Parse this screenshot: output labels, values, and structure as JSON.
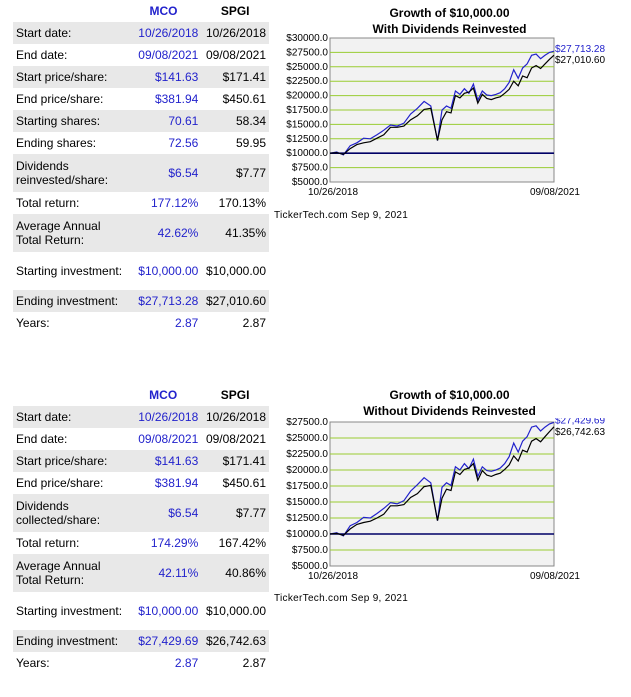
{
  "sections": [
    {
      "table": {
        "headers": [
          "",
          "MCO",
          "SPGI"
        ],
        "rows": [
          {
            "label": "Start date:",
            "mco": "10/26/2018",
            "spgi": "10/26/2018"
          },
          {
            "label": "End date:",
            "mco": "09/08/2021",
            "spgi": "09/08/2021"
          },
          {
            "label": "Start price/share:",
            "mco": "$141.63",
            "spgi": "$171.41"
          },
          {
            "label": "End price/share:",
            "mco": "$381.94",
            "spgi": "$450.61"
          },
          {
            "label": "Starting shares:",
            "mco": "70.61",
            "spgi": "58.34"
          },
          {
            "label": "Ending shares:",
            "mco": "72.56",
            "spgi": "59.95"
          },
          {
            "label": "Dividends reinvested/share:",
            "mco": "$6.54",
            "spgi": "$7.77"
          },
          {
            "label": "Total return:",
            "mco": "177.12%",
            "spgi": "170.13%"
          },
          {
            "label": "Average Annual Total Return:",
            "mco": "42.62%",
            "spgi": "41.35%"
          },
          {
            "label": "Starting investment:",
            "mco": "$10,000.00",
            "spgi": "$10,000.00"
          },
          {
            "label": "Ending investment:",
            "mco": "$27,713.28",
            "spgi": "$27,010.60"
          },
          {
            "label": "Years:",
            "mco": "2.87",
            "spgi": "2.87"
          }
        ]
      },
      "credit": "TickerTech.com  Sep 9, 2021"
    },
    {
      "table": {
        "headers": [
          "",
          "MCO",
          "SPGI"
        ],
        "rows": [
          {
            "label": "Start date:",
            "mco": "10/26/2018",
            "spgi": "10/26/2018"
          },
          {
            "label": "End date:",
            "mco": "09/08/2021",
            "spgi": "09/08/2021"
          },
          {
            "label": "Start price/share:",
            "mco": "$141.63",
            "spgi": "$171.41"
          },
          {
            "label": "End price/share:",
            "mco": "$381.94",
            "spgi": "$450.61"
          },
          {
            "label": "Dividends collected/share:",
            "mco": "$6.54",
            "spgi": "$7.77"
          },
          {
            "label": "Total return:",
            "mco": "174.29%",
            "spgi": "167.42%"
          },
          {
            "label": "Average Annual Total Return:",
            "mco": "42.11%",
            "spgi": "40.86%"
          },
          {
            "label": "Starting investment:",
            "mco": "$10,000.00",
            "spgi": "$10,000.00"
          },
          {
            "label": "Ending investment:",
            "mco": "$27,429.69",
            "spgi": "$26,742.63"
          },
          {
            "label": "Years:",
            "mco": "2.87",
            "spgi": "2.87"
          }
        ]
      },
      "credit": "TickerTech.com  Sep 9, 2021"
    }
  ],
  "colors": {
    "mco": "#2222cc",
    "spgi": "#000000",
    "grid": "#99cc33",
    "baseline": "#000066",
    "plot_bg": "#f2f2f2"
  },
  "chart_data": [
    {
      "type": "line",
      "title": "Growth of $10,000.00",
      "subtitle": "With Dividends Reinvested",
      "x_start_label": "10/26/2018",
      "x_end_label": "09/08/2021",
      "ylim": [
        5000,
        30000
      ],
      "yticks": [
        "$30000.0",
        "$27500.0",
        "$25000.0",
        "$22500.0",
        "$20000.0",
        "$17500.0",
        "$15000.0",
        "$12500.0",
        "$10000.0",
        "$7500.0",
        "$5000.0"
      ],
      "grid": true,
      "baseline": 10000,
      "end_labels": [
        "$27,713.28",
        "$27,010.60"
      ],
      "x": [
        0.0,
        0.03,
        0.06,
        0.09,
        0.12,
        0.15,
        0.18,
        0.21,
        0.24,
        0.27,
        0.3,
        0.33,
        0.36,
        0.39,
        0.42,
        0.45,
        0.48,
        0.5,
        0.52,
        0.54,
        0.56,
        0.58,
        0.6,
        0.62,
        0.64,
        0.66,
        0.68,
        0.7,
        0.72,
        0.74,
        0.76,
        0.78,
        0.8,
        0.82,
        0.84,
        0.86,
        0.88,
        0.9,
        0.92,
        0.94,
        0.96,
        0.98,
        1.0
      ],
      "series": [
        {
          "name": "MCO",
          "values": [
            10000,
            10200,
            9700,
            11300,
            11800,
            12600,
            12500,
            13200,
            14000,
            14900,
            14700,
            15200,
            16800,
            17800,
            19000,
            18200,
            12200,
            17500,
            18200,
            17800,
            20800,
            20200,
            21200,
            20400,
            22000,
            19200,
            20800,
            20100,
            20000,
            20200,
            20500,
            21200,
            22300,
            24500,
            23000,
            24800,
            25500,
            27000,
            27200,
            26400,
            27000,
            27500,
            27713
          ]
        },
        {
          "name": "SPGI",
          "values": [
            10000,
            10100,
            9800,
            10800,
            11500,
            11800,
            12000,
            12600,
            13200,
            14500,
            14500,
            14700,
            15800,
            16500,
            17600,
            17800,
            12200,
            15800,
            17200,
            17000,
            20000,
            19600,
            20400,
            20600,
            21300,
            18700,
            20200,
            19500,
            19300,
            19600,
            19800,
            20400,
            21100,
            22500,
            21700,
            23400,
            23100,
            24800,
            25200,
            24700,
            25500,
            26300,
            27010
          ]
        }
      ]
    },
    {
      "type": "line",
      "title": "Growth of $10,000.00",
      "subtitle": "Without Dividends Reinvested",
      "x_start_label": "10/26/2018",
      "x_end_label": "09/08/2021",
      "ylim": [
        5000,
        27500
      ],
      "yticks": [
        "$27500.0",
        "$25000.0",
        "$22500.0",
        "$20000.0",
        "$17500.0",
        "$15000.0",
        "$12500.0",
        "$10000.0",
        "$7500.0",
        "$5000.0"
      ],
      "grid": true,
      "baseline": 10000,
      "end_labels": [
        "$27,429.69",
        "$26,742.63"
      ],
      "x": [
        0.0,
        0.03,
        0.06,
        0.09,
        0.12,
        0.15,
        0.18,
        0.21,
        0.24,
        0.27,
        0.3,
        0.33,
        0.36,
        0.39,
        0.42,
        0.45,
        0.48,
        0.5,
        0.52,
        0.54,
        0.56,
        0.58,
        0.6,
        0.62,
        0.64,
        0.66,
        0.68,
        0.7,
        0.72,
        0.74,
        0.76,
        0.78,
        0.8,
        0.82,
        0.84,
        0.86,
        0.88,
        0.9,
        0.92,
        0.94,
        0.96,
        0.98,
        1.0
      ],
      "series": [
        {
          "name": "MCO",
          "values": [
            10000,
            10200,
            9700,
            11300,
            11800,
            12600,
            12500,
            13200,
            14000,
            14900,
            14700,
            15200,
            16700,
            17700,
            18800,
            18000,
            12100,
            17300,
            18000,
            17600,
            20500,
            20000,
            21000,
            20200,
            21700,
            19000,
            20500,
            19900,
            19800,
            20000,
            20300,
            21000,
            22100,
            24200,
            22800,
            24500,
            25200,
            26700,
            26900,
            26100,
            26700,
            27200,
            27430
          ]
        },
        {
          "name": "SPGI",
          "values": [
            10000,
            10100,
            9800,
            10800,
            11500,
            11800,
            12000,
            12500,
            13100,
            14400,
            14400,
            14600,
            15700,
            16300,
            17400,
            17600,
            12100,
            15600,
            17000,
            16800,
            19700,
            19300,
            20100,
            20300,
            21000,
            18400,
            19900,
            19200,
            19000,
            19300,
            19500,
            20100,
            20800,
            22200,
            21400,
            23100,
            22800,
            24500,
            24900,
            24400,
            25200,
            26000,
            26743
          ]
        }
      ]
    }
  ]
}
